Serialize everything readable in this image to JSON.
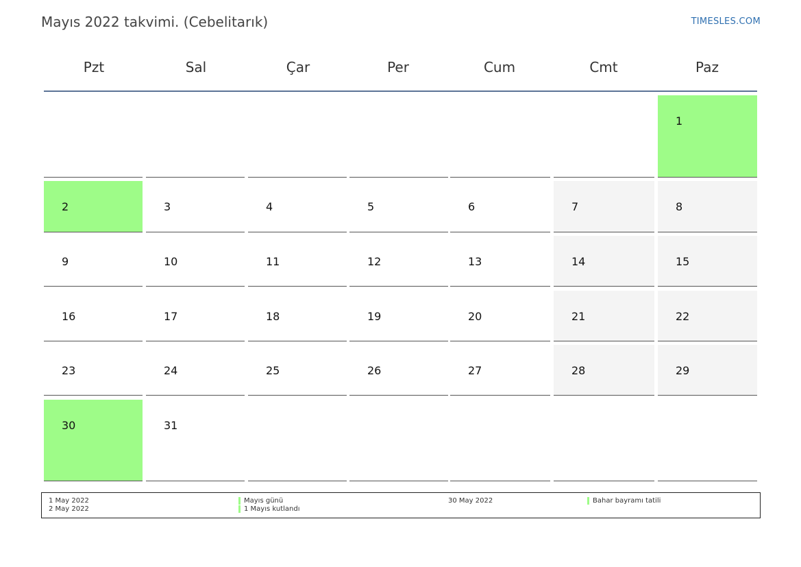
{
  "header": {
    "title": "Mayıs 2022 takvimi. (Cebelitarık)",
    "brand": "TIMESLES.COM"
  },
  "colors": {
    "holiday": "#9efc88",
    "weekend": "#f4f4f4",
    "header_rule": "#5b7396",
    "brand": "#2e6fb0"
  },
  "calendar": {
    "weekdays": [
      "Pzt",
      "Sal",
      "Çar",
      "Per",
      "Cum",
      "Cmt",
      "Paz"
    ],
    "weeks": [
      [
        "",
        "",
        "",
        "",
        "",
        "",
        "1"
      ],
      [
        "2",
        "3",
        "4",
        "5",
        "6",
        "7",
        "8"
      ],
      [
        "9",
        "10",
        "11",
        "12",
        "13",
        "14",
        "15"
      ],
      [
        "16",
        "17",
        "18",
        "19",
        "20",
        "21",
        "22"
      ],
      [
        "23",
        "24",
        "25",
        "26",
        "27",
        "28",
        "29"
      ],
      [
        "30",
        "31",
        "",
        "",
        "",
        "",
        ""
      ]
    ],
    "holidays": [
      "1",
      "2",
      "30"
    ]
  },
  "legend": {
    "dates_left": [
      "1 May 2022",
      "2 May 2022"
    ],
    "names_left": [
      "Mayıs günü",
      "1 Mayıs kutlandı"
    ],
    "dates_right": [
      "30 May 2022"
    ],
    "names_right": [
      "Bahar bayramı tatili"
    ]
  }
}
